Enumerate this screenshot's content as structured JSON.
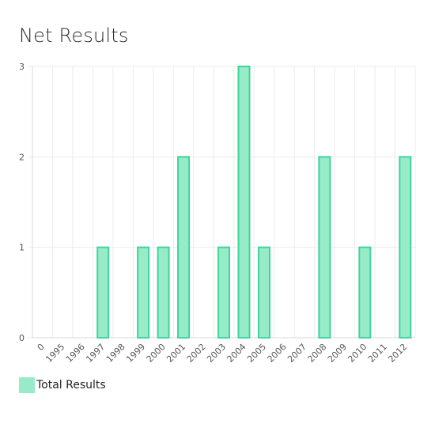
{
  "chart_data": {
    "type": "bar",
    "title": "Net Results",
    "xlabel": "",
    "ylabel": "",
    "categories": [
      "0",
      "1995",
      "1996",
      "1997",
      "1998",
      "1999",
      "2000",
      "2001",
      "2002",
      "2003",
      "2004",
      "2005",
      "2006",
      "2007",
      "2008",
      "2009",
      "2010",
      "2011",
      "2012"
    ],
    "series": [
      {
        "name": "Total Results",
        "values": [
          0,
          0,
          0,
          1,
          0,
          1,
          1,
          2,
          0,
          1,
          3,
          1,
          0,
          0,
          2,
          0,
          1,
          0,
          2
        ]
      }
    ],
    "ylim": [
      0,
      3
    ],
    "yticks": [
      "0",
      "1",
      "2",
      "3"
    ],
    "grid": true,
    "legend_position": "bottom-left",
    "colors": {
      "bar_fill": "#97ebc9",
      "bar_stroke": "#3fd59b",
      "grid": "#ececec",
      "axis": "#d8d8d8"
    }
  }
}
